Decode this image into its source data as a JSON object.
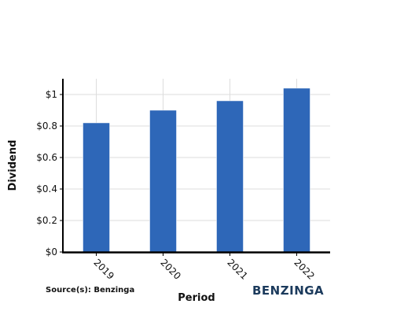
{
  "chart_data": {
    "type": "bar",
    "categories": [
      "2019",
      "2020",
      "2021",
      "2022"
    ],
    "values": [
      0.82,
      0.9,
      0.96,
      1.04
    ],
    "xlabel": "Period",
    "ylabel": "Dividend",
    "ylim": [
      0,
      1.1
    ],
    "yticks": [
      0,
      0.2,
      0.4,
      0.6,
      0.8,
      1
    ],
    "ytick_labels": [
      "$0",
      "$0.2",
      "$0.4",
      "$0.6",
      "$0.8",
      "$1"
    ],
    "grid": true,
    "bar_color": "#2e67b8"
  },
  "source": "Source(s): Benzinga",
  "logo": "BENZINGA"
}
